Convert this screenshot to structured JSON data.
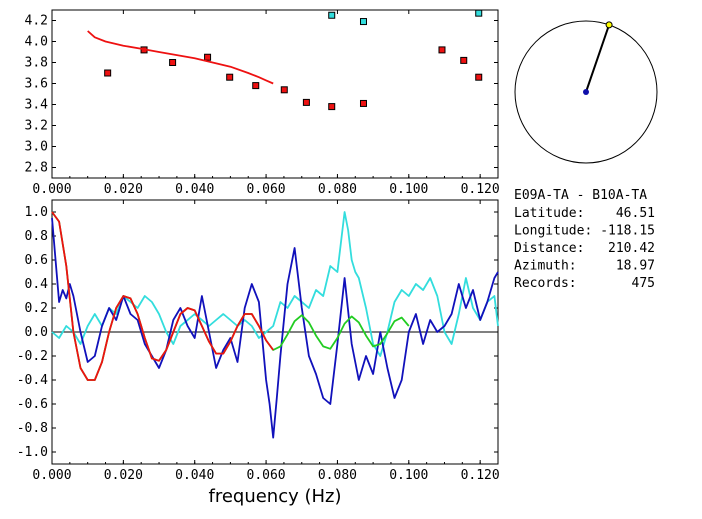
{
  "station_pair": "E09A-TA - B10A-TA",
  "info": [
    {
      "label": "Latitude:",
      "value": "46.51"
    },
    {
      "label": "Longitude:",
      "value": "-118.15"
    },
    {
      "label": "Distance:",
      "value": "210.42"
    },
    {
      "label": "Azimuth:",
      "value": "18.97"
    },
    {
      "label": "Records:",
      "value": "475"
    }
  ],
  "compass": {
    "azimuth_deg": 18.97,
    "colors": {
      "line": "#000000",
      "center": "#1010aa",
      "tip": "#ffff00"
    }
  },
  "chart_data": [
    {
      "type": "scatter",
      "xlim": [
        0.0,
        0.125
      ],
      "ylim": [
        2.7,
        4.3
      ],
      "xticks": [
        "0.000",
        "0.020",
        "0.040",
        "0.060",
        "0.080",
        "0.100",
        "0.120"
      ],
      "yticks": [
        "2.8",
        "3.0",
        "3.2",
        "3.4",
        "3.6",
        "3.8",
        "4.0",
        "4.2"
      ],
      "series": [
        {
          "color": "#ee1111",
          "marker": "square",
          "x": [
            0.0156,
            0.0258,
            0.0338,
            0.0436,
            0.0498,
            0.0571,
            0.0651,
            0.0713,
            0.0784,
            0.0873,
            0.1093,
            0.1154,
            0.1196
          ],
          "y": [
            3.7,
            3.92,
            3.8,
            3.85,
            3.66,
            3.58,
            3.54,
            3.42,
            3.38,
            3.41,
            3.92,
            3.82,
            3.66
          ]
        },
        {
          "color": "#33dddd",
          "marker": "square",
          "x": [
            0.0784,
            0.0873,
            0.1196
          ],
          "y": [
            4.25,
            4.19,
            4.27
          ]
        },
        {
          "color": "#ee1111",
          "marker": "line",
          "x": [
            0.01,
            0.012,
            0.015,
            0.02,
            0.025,
            0.03,
            0.035,
            0.04,
            0.045,
            0.05,
            0.055,
            0.058,
            0.06,
            0.062
          ],
          "y": [
            4.1,
            4.04,
            4.0,
            3.96,
            3.93,
            3.9,
            3.87,
            3.84,
            3.8,
            3.76,
            3.7,
            3.66,
            3.63,
            3.6
          ]
        }
      ]
    },
    {
      "type": "line",
      "xlabel": "frequency (Hz)",
      "xlim": [
        0.0,
        0.125
      ],
      "ylim": [
        -1.1,
        1.1
      ],
      "xticks": [
        "0.000",
        "0.020",
        "0.040",
        "0.060",
        "0.080",
        "0.100",
        "0.120"
      ],
      "yticks": [
        "-1.0",
        "-0.8",
        "-0.6",
        "-0.4",
        "-0.2",
        "0.0",
        "0.2",
        "0.4",
        "0.6",
        "0.8",
        "1.0"
      ],
      "zero_line": true,
      "series": [
        {
          "color": "#33dddd",
          "x": [
            0.0,
            0.002,
            0.004,
            0.006,
            0.008,
            0.01,
            0.012,
            0.014,
            0.016,
            0.018,
            0.02,
            0.022,
            0.024,
            0.026,
            0.028,
            0.03,
            0.032,
            0.034,
            0.036,
            0.038,
            0.04,
            0.042,
            0.044,
            0.046,
            0.048,
            0.05,
            0.052,
            0.054,
            0.056,
            0.058,
            0.06,
            0.062,
            0.064,
            0.066,
            0.068,
            0.07,
            0.072,
            0.074,
            0.076,
            0.078,
            0.08,
            0.081,
            0.082,
            0.083,
            0.084,
            0.085,
            0.086,
            0.088,
            0.09,
            0.092,
            0.094,
            0.096,
            0.098,
            0.1,
            0.102,
            0.104,
            0.106,
            0.108,
            0.11,
            0.112,
            0.114,
            0.116,
            0.118,
            0.12,
            0.122,
            0.124,
            0.125
          ],
          "y": [
            0.0,
            -0.05,
            0.05,
            0.0,
            -0.1,
            0.05,
            0.15,
            0.05,
            0.2,
            0.15,
            0.3,
            0.25,
            0.2,
            0.3,
            0.25,
            0.15,
            0.0,
            -0.1,
            0.05,
            0.1,
            0.15,
            0.1,
            0.05,
            0.1,
            0.15,
            0.1,
            0.05,
            0.1,
            0.05,
            -0.05,
            0.0,
            0.05,
            0.25,
            0.2,
            0.3,
            0.25,
            0.2,
            0.35,
            0.3,
            0.55,
            0.5,
            0.75,
            1.0,
            0.85,
            0.6,
            0.5,
            0.45,
            0.2,
            -0.1,
            -0.2,
            0.0,
            0.25,
            0.35,
            0.3,
            0.4,
            0.35,
            0.45,
            0.3,
            0.0,
            -0.1,
            0.15,
            0.45,
            0.2,
            0.1,
            0.25,
            0.3,
            0.05
          ]
        },
        {
          "color": "#1111bb",
          "x": [
            0.0,
            0.002,
            0.003,
            0.004,
            0.005,
            0.006,
            0.008,
            0.01,
            0.012,
            0.014,
            0.016,
            0.018,
            0.02,
            0.022,
            0.024,
            0.026,
            0.028,
            0.03,
            0.032,
            0.034,
            0.036,
            0.038,
            0.04,
            0.042,
            0.044,
            0.046,
            0.048,
            0.05,
            0.052,
            0.054,
            0.056,
            0.058,
            0.06,
            0.061,
            0.062,
            0.063,
            0.064,
            0.066,
            0.068,
            0.07,
            0.072,
            0.074,
            0.076,
            0.078,
            0.08,
            0.082,
            0.084,
            0.086,
            0.088,
            0.09,
            0.092,
            0.094,
            0.096,
            0.098,
            0.1,
            0.102,
            0.104,
            0.106,
            0.108,
            0.11,
            0.112,
            0.114,
            0.116,
            0.118,
            0.12,
            0.122,
            0.124,
            0.125
          ],
          "y": [
            0.95,
            0.25,
            0.35,
            0.28,
            0.4,
            0.3,
            0.0,
            -0.25,
            -0.2,
            0.05,
            0.2,
            0.1,
            0.3,
            0.15,
            0.1,
            -0.1,
            -0.2,
            -0.3,
            -0.15,
            0.1,
            0.2,
            0.05,
            -0.05,
            0.3,
            0.0,
            -0.3,
            -0.15,
            -0.05,
            -0.25,
            0.2,
            0.4,
            0.25,
            -0.4,
            -0.6,
            -0.88,
            -0.55,
            -0.2,
            0.4,
            0.7,
            0.2,
            -0.2,
            -0.35,
            -0.55,
            -0.6,
            -0.1,
            0.45,
            -0.1,
            -0.4,
            -0.2,
            -0.35,
            0.0,
            -0.3,
            -0.55,
            -0.4,
            0.0,
            0.15,
            -0.1,
            0.1,
            0.0,
            0.05,
            0.15,
            0.4,
            0.2,
            0.35,
            0.1,
            0.25,
            0.45,
            0.5
          ]
        },
        {
          "color": "#22cc22",
          "x": [
            0.0,
            0.002,
            0.004,
            0.006,
            0.008,
            0.01,
            0.012,
            0.014,
            0.016,
            0.018,
            0.02,
            0.022,
            0.024,
            0.026,
            0.028,
            0.03,
            0.032,
            0.034,
            0.036,
            0.038,
            0.04,
            0.042,
            0.044,
            0.046,
            0.048,
            0.05,
            0.052,
            0.054,
            0.056,
            0.058,
            0.06,
            0.062,
            0.064,
            0.066,
            0.068,
            0.07,
            0.072,
            0.074,
            0.076,
            0.078,
            0.08,
            0.082,
            0.084,
            0.086,
            0.088,
            0.09,
            0.092,
            0.094,
            0.096,
            0.098,
            0.1
          ],
          "y": [
            1.0,
            0.92,
            0.55,
            0.0,
            -0.3,
            -0.4,
            -0.4,
            -0.25,
            0.0,
            0.2,
            0.3,
            0.28,
            0.15,
            -0.05,
            -0.22,
            -0.24,
            -0.15,
            0.0,
            0.15,
            0.2,
            0.18,
            0.05,
            -0.08,
            -0.18,
            -0.18,
            -0.08,
            0.05,
            0.15,
            0.15,
            0.05,
            -0.07,
            -0.15,
            -0.12,
            -0.02,
            0.09,
            0.14,
            0.08,
            -0.03,
            -0.12,
            -0.14,
            -0.05,
            0.07,
            0.13,
            0.08,
            -0.03,
            -0.12,
            -0.1,
            -0.01,
            0.09,
            0.12,
            0.05
          ]
        },
        {
          "color": "#ee1111",
          "x": [
            0.0,
            0.002,
            0.004,
            0.006,
            0.008,
            0.01,
            0.012,
            0.014,
            0.016,
            0.018,
            0.02,
            0.022,
            0.024,
            0.026,
            0.028,
            0.03,
            0.032,
            0.034,
            0.036,
            0.038,
            0.04,
            0.042,
            0.044,
            0.046,
            0.048,
            0.05,
            0.052,
            0.054,
            0.056,
            0.058,
            0.06,
            0.062
          ],
          "y": [
            1.0,
            0.92,
            0.55,
            0.0,
            -0.3,
            -0.4,
            -0.4,
            -0.25,
            0.0,
            0.2,
            0.3,
            0.28,
            0.15,
            -0.05,
            -0.22,
            -0.24,
            -0.15,
            0.0,
            0.15,
            0.2,
            0.18,
            0.05,
            -0.08,
            -0.18,
            -0.18,
            -0.08,
            0.05,
            0.15,
            0.15,
            0.05,
            -0.07,
            -0.15
          ]
        }
      ]
    }
  ]
}
